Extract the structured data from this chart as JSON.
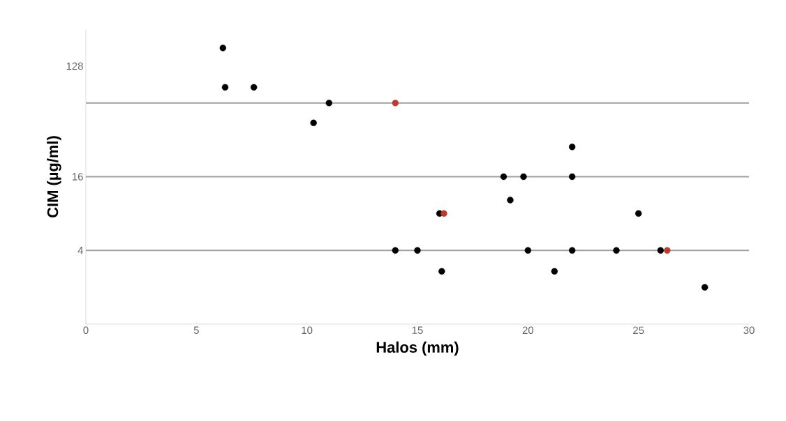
{
  "chart_data": {
    "type": "scatter",
    "xlabel": "Halos (mm)",
    "ylabel": "CIM (µg/ml)",
    "log": "y",
    "xlim": [
      0,
      30
    ],
    "xticks": [
      0,
      5,
      10,
      15,
      20,
      25,
      30
    ],
    "ylim": [
      1,
      256
    ],
    "yticks": [
      4,
      16,
      128
    ],
    "ref_lines": [
      {
        "axis": "y",
        "value": 4,
        "color": "#a0a0a0"
      },
      {
        "axis": "y",
        "value": 16,
        "color": "#a0a0a0"
      },
      {
        "axis": "y",
        "value": 64,
        "color": "#a0a0a0"
      }
    ],
    "series": [
      {
        "color": "#000000",
        "x": [
          6.2,
          6.3,
          7.6,
          11,
          10.3,
          22,
          18.9,
          19.8,
          22,
          19.2,
          16,
          25,
          14,
          15,
          20,
          22,
          24,
          26,
          16.1,
          21.2,
          28
        ],
        "values": [
          180,
          86,
          86,
          64,
          44,
          28,
          16,
          16,
          16,
          10.3,
          8,
          8,
          4,
          4,
          4,
          4,
          4,
          4,
          2.7,
          2.7,
          2
        ]
      },
      {
        "color": "#c0392b",
        "x": [
          14,
          16.2,
          26.3
        ],
        "values": [
          64,
          8,
          4
        ]
      }
    ]
  }
}
